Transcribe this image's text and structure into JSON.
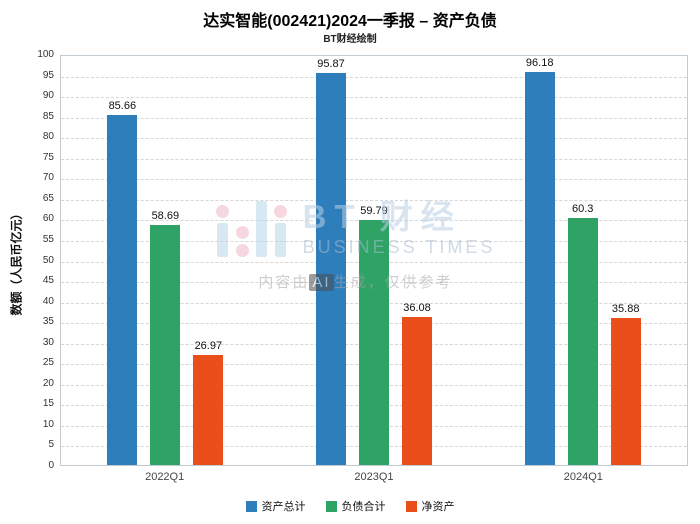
{
  "title": "达实智能(002421)2024一季报 – 资产负债",
  "subtitle": "BT财经绘制",
  "watermark": {
    "brand_cn": "BT 财经",
    "brand_en": "BUSINESS TIMES",
    "disclaimer_prefix": "内容由",
    "disclaimer_ai": "AI",
    "disclaimer_suffix": "生成，仅供参考"
  },
  "chart_data": {
    "type": "bar",
    "title": "达实智能(002421)2024一季报 – 资产负债",
    "subtitle": "BT财经绘制",
    "categories": [
      "2022Q1",
      "2023Q1",
      "2024Q1"
    ],
    "series": [
      {
        "name": "资产总计",
        "color": "#2e7ebc",
        "values": [
          85.66,
          95.87,
          96.18
        ]
      },
      {
        "name": "负债合计",
        "color": "#2fa266",
        "values": [
          58.69,
          59.79,
          60.3
        ]
      },
      {
        "name": "净资产",
        "color": "#ea4e1b",
        "values": [
          26.97,
          36.08,
          35.88
        ]
      }
    ],
    "xlabel": "",
    "ylabel": "数额（人民币亿元）",
    "ylim": [
      0,
      100
    ],
    "ytick_step": 5,
    "grid": true,
    "grid_style": "dashed",
    "legend_position": "bottom"
  }
}
